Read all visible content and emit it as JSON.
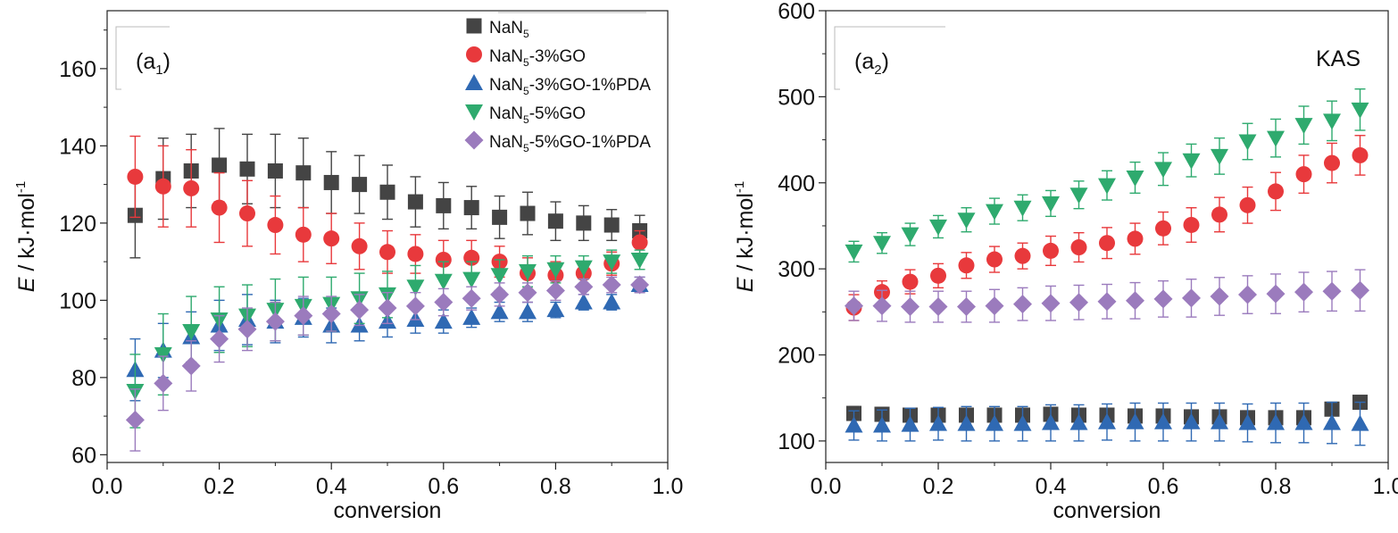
{
  "chart_data": [
    {
      "type": "scatter",
      "panel_label_main": "(a",
      "panel_label_sub": "1",
      "panel_label_end": ")",
      "xlabel": "conversion",
      "ylabel_main": "E",
      "ylabel_rest": " / kJ·mol",
      "ylabel_sup": "-1",
      "xlim": [
        0.0,
        1.0
      ],
      "ylim": [
        58,
        175
      ],
      "xticks": [
        "0.0",
        "0.2",
        "0.4",
        "0.6",
        "0.8",
        "1.0"
      ],
      "yticks": [
        "60",
        "80",
        "100",
        "120",
        "140",
        "160"
      ],
      "legend": {
        "placement": "top-right"
      },
      "x": [
        0.05,
        0.1,
        0.15,
        0.2,
        0.25,
        0.3,
        0.35,
        0.4,
        0.45,
        0.5,
        0.55,
        0.6,
        0.65,
        0.7,
        0.75,
        0.8,
        0.85,
        0.9,
        0.95
      ],
      "series": [
        {
          "name": "NaN5",
          "name_main": "NaN",
          "name_sub": "5",
          "name_rest": "",
          "marker": "square",
          "color": "#444444",
          "values": [
            122,
            131.5,
            133.5,
            135,
            134,
            133.5,
            133,
            130.5,
            130,
            128,
            125.5,
            124.5,
            124,
            121.5,
            122.5,
            120.5,
            120,
            119.5,
            118
          ],
          "errors": [
            11,
            10.5,
            9.5,
            9.5,
            9,
            9.5,
            9,
            8,
            7.5,
            7,
            6.5,
            6,
            5.5,
            5.5,
            5.5,
            5,
            4.5,
            4,
            4
          ]
        },
        {
          "name": "NaN5-3%GO",
          "name_main": "NaN",
          "name_sub": "5",
          "name_rest": "-3%GO",
          "marker": "circle",
          "color": "#e8393c",
          "values": [
            132,
            129.5,
            129,
            124,
            122.5,
            119.5,
            117,
            116,
            114,
            112.5,
            112,
            110.5,
            111,
            110,
            107,
            106.5,
            107,
            109.5,
            115
          ],
          "errors": [
            10.5,
            10.5,
            10,
            9,
            8.5,
            7.5,
            7,
            6.5,
            6,
            5.5,
            5,
            5,
            4.5,
            4,
            4,
            3.5,
            3,
            3,
            3
          ]
        },
        {
          "name": "NaN5-3%GO-1%PDA",
          "name_main": "NaN",
          "name_sub": "5",
          "name_rest": "-3%GO-1%PDA",
          "marker": "triangle-up",
          "color": "#2f69b3",
          "values": [
            82,
            87,
            90.5,
            93.5,
            95,
            94.5,
            95.5,
            93.5,
            93.5,
            94.5,
            95,
            94.5,
            95.5,
            97,
            97,
            97.5,
            99.5,
            99.5,
            104
          ],
          "errors": [
            8,
            7,
            6.5,
            6.5,
            6.5,
            5.5,
            5,
            4.5,
            4,
            4,
            3.5,
            3,
            2.5,
            2.5,
            2.5,
            2,
            2,
            2,
            2
          ]
        },
        {
          "name": "NaN5-5%GO",
          "name_main": "NaN",
          "name_sub": "5",
          "name_rest": "-5%GO",
          "marker": "triangle-down",
          "color": "#2eaa6e",
          "values": [
            76.5,
            86,
            92,
            95,
            96,
            97.5,
            98.5,
            99,
            100.5,
            101.5,
            103.5,
            105,
            105.5,
            106.5,
            107.5,
            108,
            108.5,
            110,
            110.5
          ],
          "errors": [
            9.5,
            10.5,
            9,
            8.5,
            8,
            8,
            7.5,
            7,
            6.5,
            6,
            5.5,
            5,
            4.5,
            4,
            4,
            3.5,
            3,
            3,
            2.5
          ]
        },
        {
          "name": "NaN5-5%GO-1%PDA",
          "name_main": "NaN",
          "name_sub": "5",
          "name_rest": "-5%GO-1%PDA",
          "marker": "diamond",
          "color": "#9b7bbd",
          "values": [
            69,
            78.5,
            83,
            90,
            92.5,
            94.5,
            96,
            96.5,
            97.5,
            98,
            98.5,
            99.5,
            100.5,
            101.5,
            102,
            102.5,
            103.5,
            104,
            104
          ],
          "errors": [
            8,
            7,
            6.5,
            6,
            5.5,
            5,
            5,
            4.5,
            4,
            4,
            3.5,
            3.5,
            3,
            3,
            2.5,
            2.5,
            2,
            2,
            2
          ]
        }
      ]
    },
    {
      "type": "scatter",
      "panel_label_main": "(a",
      "panel_label_sub": "2",
      "panel_label_end": ")",
      "annotation": "KAS",
      "xlabel": "conversion",
      "ylabel_main": "E",
      "ylabel_rest": " / kJ·mol",
      "ylabel_sup": "-1",
      "xlim": [
        0.0,
        1.0
      ],
      "ylim": [
        75,
        600
      ],
      "xticks": [
        "0.0",
        "0.2",
        "0.4",
        "0.6",
        "0.8",
        "1.0"
      ],
      "yticks": [
        "100",
        "200",
        "300",
        "400",
        "500",
        "600"
      ],
      "x": [
        0.05,
        0.1,
        0.15,
        0.2,
        0.25,
        0.3,
        0.35,
        0.4,
        0.45,
        0.5,
        0.55,
        0.6,
        0.65,
        0.7,
        0.75,
        0.8,
        0.85,
        0.9,
        0.95
      ],
      "series": [
        {
          "marker": "square",
          "color": "#444444",
          "values": [
            132,
            131,
            130,
            130,
            130,
            130,
            130,
            131,
            130,
            130,
            129,
            129,
            128,
            128,
            127,
            127,
            127,
            137,
            145
          ],
          "errors": [
            8,
            8,
            8,
            8,
            8,
            8,
            8,
            8,
            8,
            8,
            8,
            8,
            8,
            8,
            8,
            8,
            8,
            6,
            6
          ]
        },
        {
          "marker": "circle",
          "color": "#e8393c",
          "values": [
            255,
            273,
            285,
            292,
            304,
            311,
            315,
            321,
            325,
            330,
            335,
            347,
            351,
            363,
            374,
            390,
            410,
            423,
            432
          ],
          "errors": [
            15,
            13,
            14,
            14,
            15,
            15,
            15,
            17,
            17,
            18,
            18,
            19,
            20,
            20,
            21,
            22,
            22,
            23,
            23
          ]
        },
        {
          "marker": "triangle-up",
          "color": "#2f69b3",
          "values": [
            118,
            118,
            119,
            120,
            120,
            120,
            120,
            121,
            121,
            122,
            122,
            122,
            122,
            122,
            121,
            121,
            121,
            121,
            120
          ],
          "errors": [
            17,
            18,
            19,
            19,
            20,
            20,
            20,
            21,
            21,
            21,
            22,
            22,
            22,
            22,
            22,
            23,
            23,
            24,
            25
          ]
        },
        {
          "marker": "triangle-down",
          "color": "#2eaa6e",
          "values": [
            320,
            330,
            340,
            349,
            357,
            367,
            371,
            376,
            386,
            397,
            406,
            416,
            426,
            431,
            448,
            452,
            467,
            472,
            485
          ],
          "errors": [
            12,
            12,
            13,
            13,
            14,
            15,
            15,
            15,
            16,
            17,
            18,
            19,
            19,
            21,
            21,
            22,
            22,
            23,
            24
          ]
        },
        {
          "marker": "diamond",
          "color": "#9b7bbd",
          "values": [
            257,
            257,
            256,
            256,
            256,
            257,
            259,
            260,
            261,
            262,
            263,
            265,
            266,
            268,
            270,
            271,
            273,
            274,
            275
          ],
          "errors": [
            17,
            18,
            18,
            18,
            18,
            19,
            19,
            20,
            20,
            20,
            21,
            21,
            22,
            22,
            22,
            23,
            23,
            23,
            24
          ]
        }
      ]
    }
  ]
}
